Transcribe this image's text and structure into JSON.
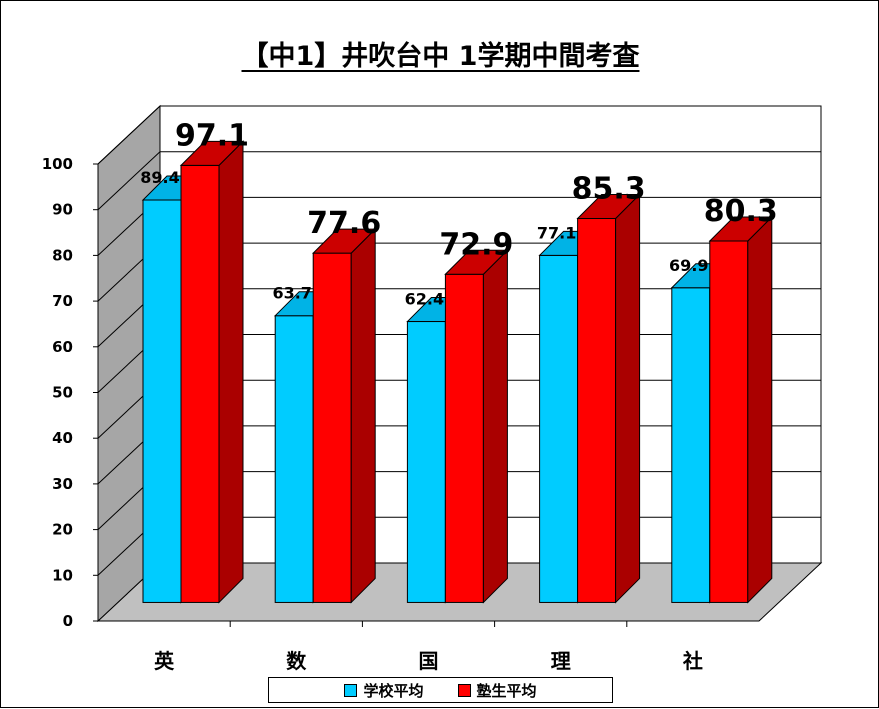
{
  "chart_data": {
    "type": "bar",
    "style": "3d-clustered",
    "title": "【中1】井吹台中 1学期中間考査",
    "categories": [
      "英",
      "数",
      "国",
      "理",
      "社"
    ],
    "series": [
      {
        "name": "学校平均",
        "values": [
          89.4,
          63.7,
          62.4,
          77.1,
          69.9
        ],
        "color": "#00CCFF"
      },
      {
        "name": "塾生平均",
        "values": [
          97.1,
          77.6,
          72.9,
          85.3,
          80.3
        ],
        "color": "#FF0000"
      }
    ],
    "ylim": [
      0,
      100
    ],
    "yticks": [
      0,
      10,
      20,
      30,
      40,
      50,
      60,
      70,
      80,
      90,
      100
    ],
    "xlabel": "",
    "ylabel": "",
    "grid": true,
    "legend": "bottom"
  }
}
